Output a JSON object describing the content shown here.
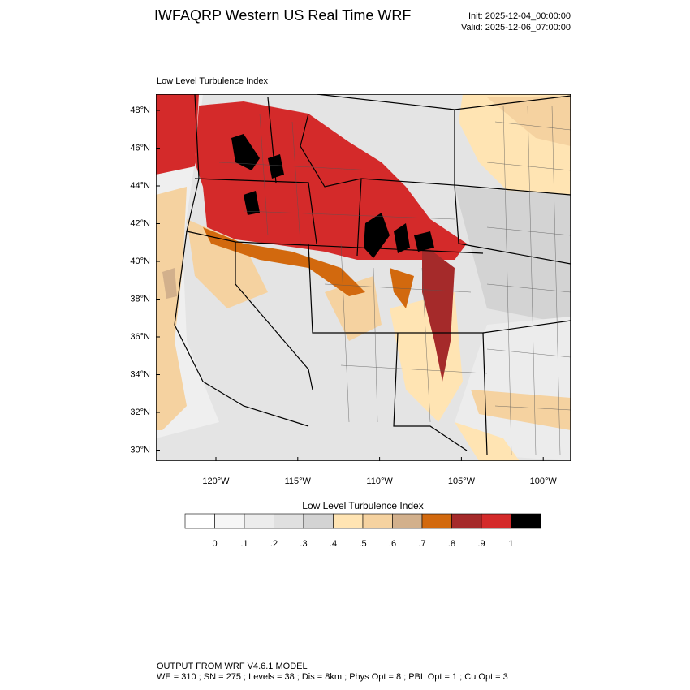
{
  "header": {
    "title": "IWFAQRP Western US Real Time WRF",
    "init": "Init: 2025-12-04_00:00:00",
    "valid": "Valid: 2025-12-06_07:00:00"
  },
  "map": {
    "title": "Low Level Turbulence Index",
    "lat_labels": [
      "48°N",
      "46°N",
      "44°N",
      "42°N",
      "40°N",
      "38°N",
      "36°N",
      "34°N",
      "32°N",
      "30°N"
    ],
    "lon_labels": [
      "120°W",
      "115°W",
      "110°W",
      "105°W",
      "100°W"
    ]
  },
  "colorbar": {
    "title": "Low Level Turbulence Index",
    "colors": [
      "#ffffff",
      "#f6f6f6",
      "#ececec",
      "#e0e0e0",
      "#d3d3d3",
      "#ffe4b3",
      "#f5d2a0",
      "#d2b08c",
      "#d2690e",
      "#a52a2a",
      "#d42a2a",
      "#000000"
    ],
    "ticks": [
      0,
      {
        "value": 0.1,
        "label": ".1"
      },
      {
        "value": 0.2,
        "label": ".2"
      },
      {
        "value": 0.3,
        "label": ".3"
      },
      {
        "value": 0.4,
        "label": ".4"
      },
      {
        "value": 0.5,
        "label": ".5"
      },
      {
        "value": 0.6,
        "label": ".6"
      },
      {
        "value": 0.7,
        "label": ".7"
      },
      {
        "value": 0.8,
        "label": ".8"
      },
      {
        "value": 0.9,
        "label": ".9"
      },
      1
    ]
  },
  "footer": {
    "line1": "OUTPUT FROM WRF V4.6.1 MODEL",
    "line2": "WE = 310 ; SN = 275 ; Levels = 38 ; Dis = 8km ; Phys Opt = 8 ; PBL Opt = 1 ; Cu Opt = 3"
  }
}
